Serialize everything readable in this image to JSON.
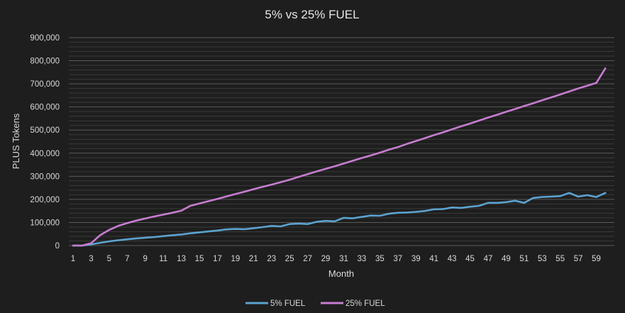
{
  "chart_data": {
    "type": "line",
    "title": "5% vs 25% FUEL",
    "xlabel": "Month",
    "ylabel": "PLUS Tokens",
    "ylim": [
      0,
      900000
    ],
    "yticks": [
      0,
      100000,
      200000,
      300000,
      400000,
      500000,
      600000,
      700000,
      800000,
      900000
    ],
    "ytick_labels": [
      "0",
      "100,000",
      "200,000",
      "300,000",
      "400,000",
      "500,000",
      "600,000",
      "700,000",
      "800,000",
      "900,000"
    ],
    "xtick_labels": [
      "1",
      "3",
      "5",
      "7",
      "9",
      "11",
      "13",
      "15",
      "17",
      "19",
      "21",
      "23",
      "25",
      "27",
      "29",
      "31",
      "33",
      "35",
      "37",
      "39",
      "41",
      "43",
      "45",
      "47",
      "49",
      "51",
      "53",
      "55",
      "57",
      "59"
    ],
    "x": [
      1,
      2,
      3,
      4,
      5,
      6,
      7,
      8,
      9,
      10,
      11,
      12,
      13,
      14,
      15,
      16,
      17,
      18,
      19,
      20,
      21,
      22,
      23,
      24,
      25,
      26,
      27,
      28,
      29,
      30,
      31,
      32,
      33,
      34,
      35,
      36,
      37,
      38,
      39,
      40,
      41,
      42,
      43,
      44,
      45,
      46,
      47,
      48,
      49,
      50,
      51,
      52,
      53,
      54,
      55,
      56,
      57,
      58,
      59,
      60
    ],
    "legend_position": "bottom",
    "series": [
      {
        "name": "5% FUEL",
        "color": "#5ba3d0",
        "values": [
          0,
          0,
          5000,
          12000,
          18000,
          23000,
          27000,
          31000,
          34000,
          37000,
          41000,
          45000,
          48000,
          53000,
          57000,
          61000,
          65000,
          70000,
          72000,
          71000,
          75000,
          80000,
          85000,
          83000,
          93000,
          95000,
          93000,
          103000,
          107000,
          105000,
          120000,
          118000,
          124000,
          130000,
          129000,
          138000,
          142000,
          143000,
          146000,
          150000,
          157000,
          158000,
          165000,
          163000,
          168000,
          172000,
          185000,
          185000,
          188000,
          194000,
          185000,
          206000,
          210000,
          212000,
          214000,
          228000,
          212000,
          218000,
          210000,
          228000
        ]
      },
      {
        "name": "25% FUEL",
        "color": "#c77dd1",
        "values": [
          0,
          0,
          10000,
          45000,
          68000,
          85000,
          97000,
          108000,
          117000,
          126000,
          134000,
          142000,
          151000,
          172000,
          182000,
          192000,
          202000,
          213000,
          223000,
          233000,
          244000,
          254000,
          264000,
          274000,
          285000,
          297000,
          309000,
          321000,
          332000,
          343000,
          355000,
          367000,
          379000,
          390000,
          402000,
          415000,
          426000,
          440000,
          452000,
          465000,
          478000,
          490000,
          503000,
          516000,
          528000,
          541000,
          554000,
          566000,
          579000,
          591000,
          604000,
          616000,
          629000,
          641000,
          654000,
          667000,
          680000,
          692000,
          704000,
          767000
        ]
      }
    ]
  }
}
